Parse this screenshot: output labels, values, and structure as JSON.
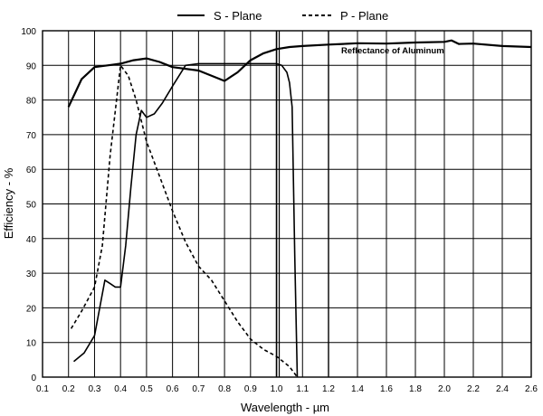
{
  "chart_data": {
    "type": "line",
    "xlabel": "Wavelength - µm",
    "ylabel": "Efficiency - %",
    "xlim": [
      0.1,
      2.6
    ],
    "ylim": [
      0,
      100
    ],
    "xticks": [
      0.1,
      0.2,
      0.3,
      0.4,
      0.5,
      0.6,
      0.7,
      0.8,
      0.9,
      1.0,
      1.1,
      1.2,
      1.4,
      1.6,
      1.8,
      2.0,
      2.2,
      2.4,
      2.6
    ],
    "yticks": [
      0,
      10,
      20,
      30,
      40,
      50,
      60,
      70,
      80,
      90,
      100
    ],
    "grid": true,
    "legend_position": "top-center",
    "vertical_lines": [
      1.0,
      1.0,
      1.2
    ],
    "series": [
      {
        "name": "S - Plane",
        "style": "solid",
        "x": [
          0.22,
          0.26,
          0.3,
          0.32,
          0.34,
          0.36,
          0.38,
          0.4,
          0.42,
          0.44,
          0.46,
          0.48,
          0.5,
          0.53,
          0.56,
          0.6,
          0.65,
          0.7,
          0.75,
          0.8,
          0.85,
          0.9,
          0.95,
          1.0,
          1.02,
          1.04,
          1.05,
          1.06,
          1.07,
          1.08
        ],
        "y": [
          4.5,
          7,
          12,
          20,
          28,
          27,
          26,
          26,
          38,
          55,
          70,
          77,
          75,
          76,
          79,
          84,
          90,
          90.5,
          90.5,
          90.5,
          90.5,
          90.5,
          90.5,
          90.5,
          90,
          88,
          85,
          78,
          35,
          0
        ]
      },
      {
        "name": "P - Plane",
        "style": "dashed",
        "x": [
          0.21,
          0.25,
          0.3,
          0.33,
          0.36,
          0.4,
          0.43,
          0.46,
          0.5,
          0.55,
          0.6,
          0.65,
          0.7,
          0.75,
          0.8,
          0.85,
          0.9,
          0.95,
          1.0,
          1.05,
          1.08
        ],
        "y": [
          14,
          19,
          26,
          38,
          64,
          90,
          87,
          80,
          68,
          58,
          48,
          39,
          32,
          28,
          22,
          16,
          11,
          8,
          6,
          3,
          0
        ]
      },
      {
        "name": "Reflectance of Aluminum",
        "style": "solid",
        "x": [
          0.2,
          0.25,
          0.3,
          0.35,
          0.4,
          0.45,
          0.5,
          0.55,
          0.6,
          0.7,
          0.8,
          0.85,
          0.9,
          0.95,
          1.0,
          1.05,
          1.1,
          1.2,
          1.3,
          1.4,
          1.6,
          1.8,
          2.0,
          2.05,
          2.1,
          2.2,
          2.4,
          2.6
        ],
        "y": [
          78,
          86,
          89.5,
          90,
          90.5,
          91.5,
          92,
          91,
          89.5,
          88.5,
          85.5,
          88,
          91.5,
          93.5,
          94.7,
          95.3,
          95.6,
          96,
          96.2,
          96.4,
          96.3,
          96.6,
          96.8,
          97.2,
          96.2,
          96.3,
          95.6,
          95.3
        ]
      }
    ],
    "annotations": [
      {
        "text": "Reflectance of Aluminum",
        "x": 1.35,
        "y": 94
      }
    ]
  }
}
